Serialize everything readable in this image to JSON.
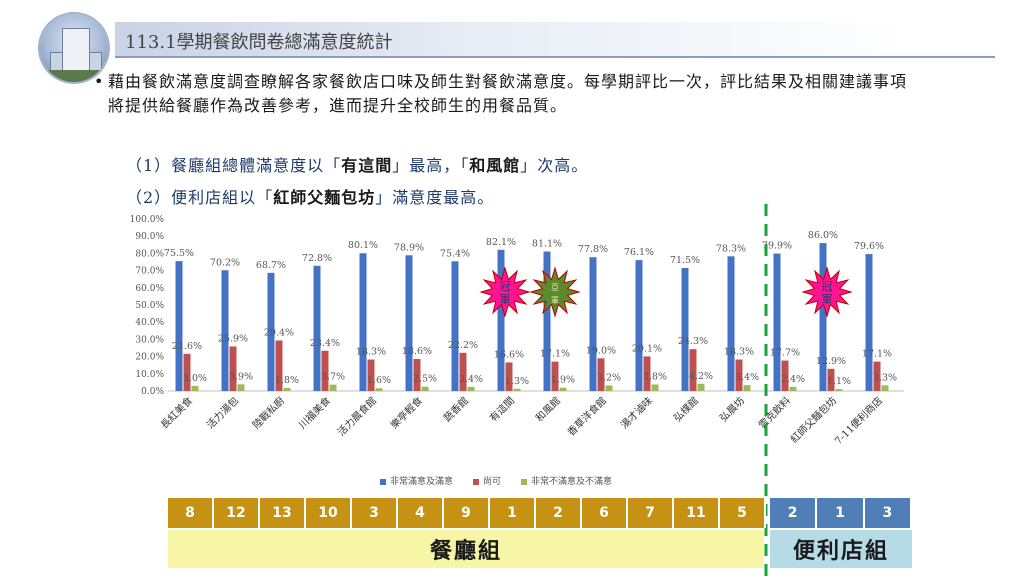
{
  "header": {
    "title": "113.1學期餐飲問卷總滿意度統計"
  },
  "intro": {
    "bullet": "•",
    "paragraph": "藉由餐飲滿意度調查瞭解各家餐飲店口味及師生對餐飲滿意度。每學期評比一次，評比結果及相關建議事項將提供給餐廳作為改善參考，進而提升全校師生的用餐品質。",
    "point1_prefix": "（1）餐廳組總體滿意度以「",
    "point1_bold1": "有這間",
    "point1_mid": "」最高，「",
    "point1_bold2": "和風館",
    "point1_suffix": "」次高。",
    "point2_prefix": "（2）便利店組以「",
    "point2_bold": "紅師父麵包坊",
    "point2_suffix": "」滿意度最高。"
  },
  "chart_data": {
    "type": "bar",
    "categories": [
      "長紅美食",
      "活力湯包",
      "陸戰私廚",
      "川福美食",
      "活力晨食館",
      "樂亭輕食",
      "蔬香館",
      "有這間",
      "和風館",
      "香草洋食館",
      "湯才滷味",
      "弘樸館",
      "弘晨坊",
      "雲克飲料",
      "紅師父麵包坊",
      "7-11便利商店"
    ],
    "series": [
      {
        "name": "非常滿意及滿意",
        "color": "#4472c4",
        "values": [
          75.5,
          70.2,
          68.7,
          72.8,
          80.1,
          78.9,
          75.4,
          82.1,
          81.1,
          77.8,
          76.1,
          71.5,
          78.3,
          79.9,
          86.0,
          79.6
        ]
      },
      {
        "name": "尚可",
        "color": "#c0504d",
        "values": [
          21.6,
          25.9,
          29.4,
          23.4,
          18.3,
          18.6,
          22.2,
          16.6,
          17.1,
          19.0,
          20.1,
          24.3,
          18.3,
          17.7,
          12.9,
          17.1
        ]
      },
      {
        "name": "非常不滿意及不滿意",
        "color": "#9bbb59",
        "values": [
          3.0,
          3.9,
          1.8,
          3.7,
          1.6,
          2.5,
          2.4,
          1.3,
          1.9,
          3.2,
          3.8,
          4.2,
          3.4,
          2.4,
          1.1,
          3.3
        ]
      }
    ],
    "yticks": [
      "0.0%",
      "10.0%",
      "20.0%",
      "30.0%",
      "40.0%",
      "50.0%",
      "60.0%",
      "70.0%",
      "80.0%",
      "90.0%",
      "100.0%"
    ],
    "ylim": [
      0,
      100
    ],
    "legend_position": "bottom",
    "annotations": [
      {
        "category": "有這間",
        "text": "冠軍",
        "color": "#ff1493"
      },
      {
        "category": "和風館",
        "text": "亞軍",
        "color": "#5b8a2d"
      },
      {
        "category": "紅師父麵包坊",
        "text": "冠軍",
        "color": "#ff1493"
      }
    ]
  },
  "ranking": {
    "restaurant_ranks": [
      "8",
      "12",
      "13",
      "10",
      "3",
      "4",
      "9",
      "1",
      "2",
      "6",
      "7",
      "11",
      "5"
    ],
    "store_ranks": [
      "2",
      "1",
      "3"
    ],
    "restaurant_label": "餐廳組",
    "store_label": "便利店組",
    "restaurant_color": "#c69214",
    "store_color": "#4f7fb6",
    "restaurant_bg": "#f7f5a6",
    "store_bg": "#b5dbe6"
  }
}
